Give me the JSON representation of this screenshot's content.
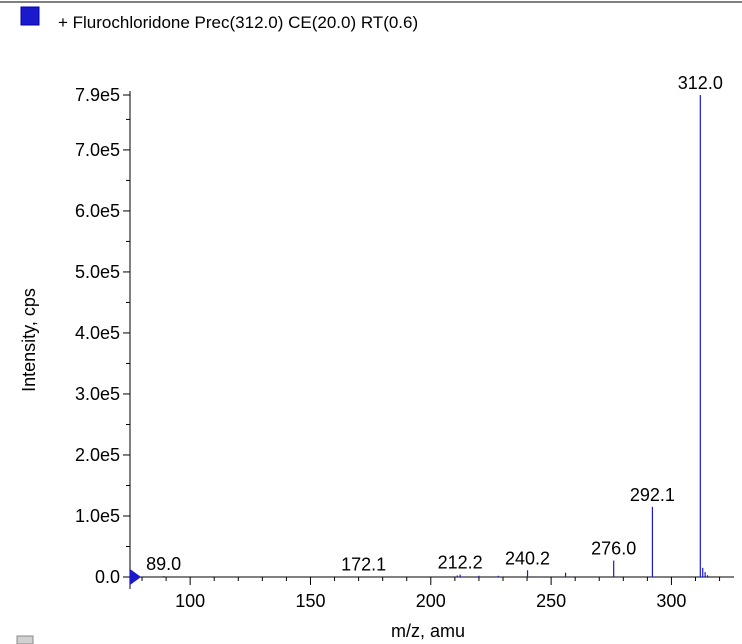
{
  "chart_data": {
    "type": "bar",
    "title": "+ Flurochloridone Prec(312.0) CE(20.0) RT(0.6)",
    "xlabel": "m/z, amu",
    "ylabel": "Intensity, cps",
    "xlim": [
      75,
      326
    ],
    "ylim": [
      0,
      790000
    ],
    "x_ticks": [
      100,
      150,
      200,
      250,
      300
    ],
    "y_ticks": [
      {
        "value": 0,
        "label": "0.0"
      },
      {
        "value": 100000,
        "label": "1.0e5"
      },
      {
        "value": 200000,
        "label": "2.0e5"
      },
      {
        "value": 300000,
        "label": "3.0e5"
      },
      {
        "value": 400000,
        "label": "4.0e5"
      },
      {
        "value": 500000,
        "label": "5.0e5"
      },
      {
        "value": 600000,
        "label": "6.0e5"
      },
      {
        "value": 700000,
        "label": "7.0e5"
      },
      {
        "value": 790000,
        "label": "7.9e5"
      }
    ],
    "series": [
      {
        "color": "#1a1acc",
        "peaks": [
          {
            "x": 89.0,
            "y": 1500
          },
          {
            "x": 172.1,
            "y": 1000
          },
          {
            "x": 211.0,
            "y": 2500
          },
          {
            "x": 212.2,
            "y": 4000
          },
          {
            "x": 220.0,
            "y": 2000
          },
          {
            "x": 228.0,
            "y": 2000
          },
          {
            "x": 240.2,
            "y": 11000
          },
          {
            "x": 256.0,
            "y": 7000
          },
          {
            "x": 276.0,
            "y": 27000
          },
          {
            "x": 292.1,
            "y": 115000
          },
          {
            "x": 312.0,
            "y": 790000
          },
          {
            "x": 313.0,
            "y": 15000
          },
          {
            "x": 314.0,
            "y": 8000
          },
          {
            "x": 315.0,
            "y": 3000
          }
        ]
      }
    ],
    "peak_labels": [
      "89.0",
      "172.1",
      "212.2",
      "240.2",
      "276.0",
      "292.1",
      "312.0"
    ]
  }
}
